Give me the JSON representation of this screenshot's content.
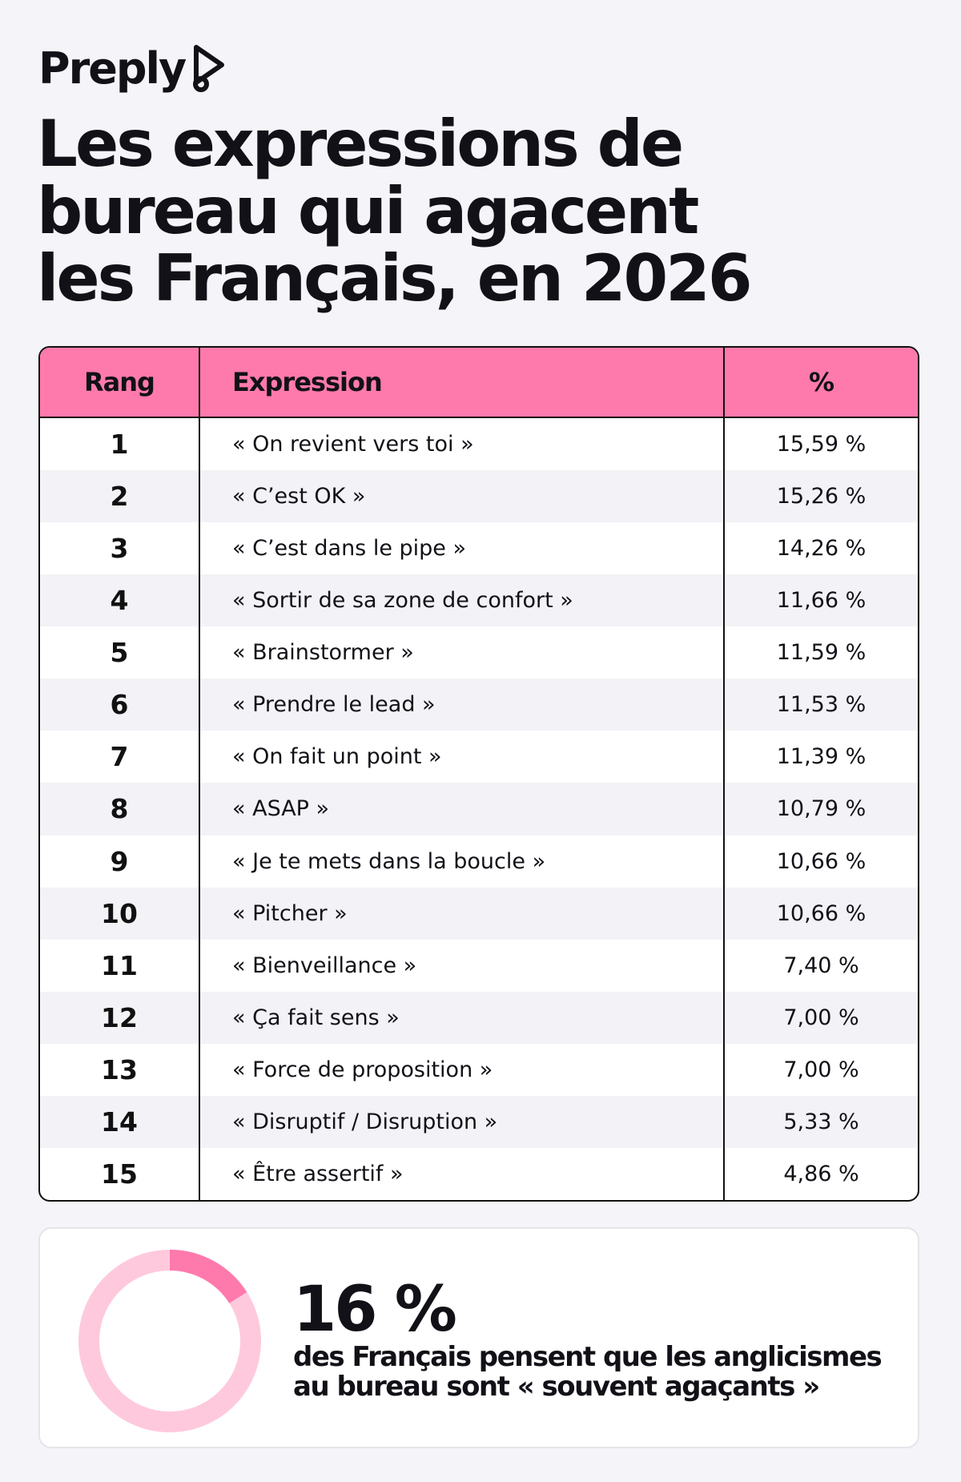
{
  "brand": {
    "name": "Preply"
  },
  "title": {
    "lines": [
      "Les expressions de",
      "bureau qui agacent",
      "les Français, en 2026"
    ]
  },
  "table": {
    "headers": {
      "rank": "Rang",
      "expression": "Expression",
      "percent": "%"
    },
    "rows": [
      {
        "rank": "1",
        "expression": "« On revient vers toi »",
        "percent": "15,59 %"
      },
      {
        "rank": "2",
        "expression": "« C’est OK »",
        "percent": "15,26 %"
      },
      {
        "rank": "3",
        "expression": "« C’est dans le pipe »",
        "percent": "14,26 %"
      },
      {
        "rank": "4",
        "expression": "« Sortir de sa zone de confort »",
        "percent": "11,66 %"
      },
      {
        "rank": "5",
        "expression": "« Brainstormer »",
        "percent": "11,59 %"
      },
      {
        "rank": "6",
        "expression": "« Prendre le lead »",
        "percent": "11,53 %"
      },
      {
        "rank": "7",
        "expression": "« On fait un point »",
        "percent": "11,39 %"
      },
      {
        "rank": "8",
        "expression": "« ASAP »",
        "percent": "10,79 %"
      },
      {
        "rank": "9",
        "expression": "« Je te mets dans la boucle »",
        "percent": "10,66 %"
      },
      {
        "rank": "10",
        "expression": "« Pitcher »",
        "percent": "10,66 %"
      },
      {
        "rank": "11",
        "expression": "« Bienveillance »",
        "percent": "7,40 %"
      },
      {
        "rank": "12",
        "expression": "« Ça fait sens »",
        "percent": "7,00 %"
      },
      {
        "rank": "13",
        "expression": "« Force de proposition »",
        "percent": "7,00 %"
      },
      {
        "rank": "14",
        "expression": "« Disruptif / Disruption »",
        "percent": "5,33 %"
      },
      {
        "rank": "15",
        "expression": "« Être assertif »",
        "percent": "4,86 %"
      }
    ]
  },
  "stat": {
    "value": "16 %",
    "fraction": 0.16,
    "lines": [
      "des Français pensent que les anglicismes",
      "au bureau sont « souvent agaçants »"
    ]
  },
  "colors": {
    "accent": "#ff7aac",
    "donut_track": "#ffc9dd",
    "donut_fill": "#ff7aac",
    "text": "#121117",
    "background": "#f5f4f8"
  },
  "icons": {
    "logo": "preply-logo-icon"
  }
}
